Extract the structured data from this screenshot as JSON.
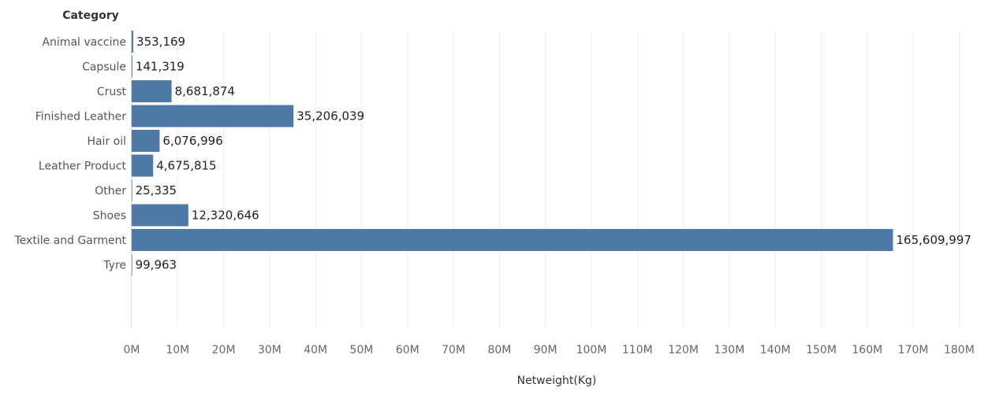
{
  "chart_data": {
    "type": "bar",
    "orientation": "horizontal",
    "row_header": "Category",
    "xlabel": "Netweight(Kg)",
    "categories": [
      "Animal vaccine",
      "Capsule",
      "Crust",
      "Finished Leather",
      "Hair oil",
      "Leather Product",
      "Other",
      "Shoes",
      "Textile and Garment",
      "Tyre"
    ],
    "values": [
      353169,
      141319,
      8681874,
      35206039,
      6076996,
      4675815,
      25335,
      12320646,
      165609997,
      99963
    ],
    "value_labels": [
      "353,169",
      "141,319",
      "8,681,874",
      "35,206,039",
      "6,076,996",
      "4,675,815",
      "25,335",
      "12,320,646",
      "165,609,997",
      "99,963"
    ],
    "x_ticks": [
      0,
      10000000,
      20000000,
      30000000,
      40000000,
      50000000,
      60000000,
      70000000,
      80000000,
      90000000,
      100000000,
      110000000,
      120000000,
      130000000,
      140000000,
      150000000,
      160000000,
      170000000,
      180000000
    ],
    "x_tick_labels": [
      "0M",
      "10M",
      "20M",
      "30M",
      "40M",
      "50M",
      "60M",
      "70M",
      "80M",
      "90M",
      "100M",
      "110M",
      "120M",
      "130M",
      "140M",
      "150M",
      "160M",
      "170M",
      "180M"
    ],
    "xlim": [
      0,
      190000000
    ],
    "grid": "vertical",
    "legend": "none",
    "bar_color": "#4e79a7"
  }
}
